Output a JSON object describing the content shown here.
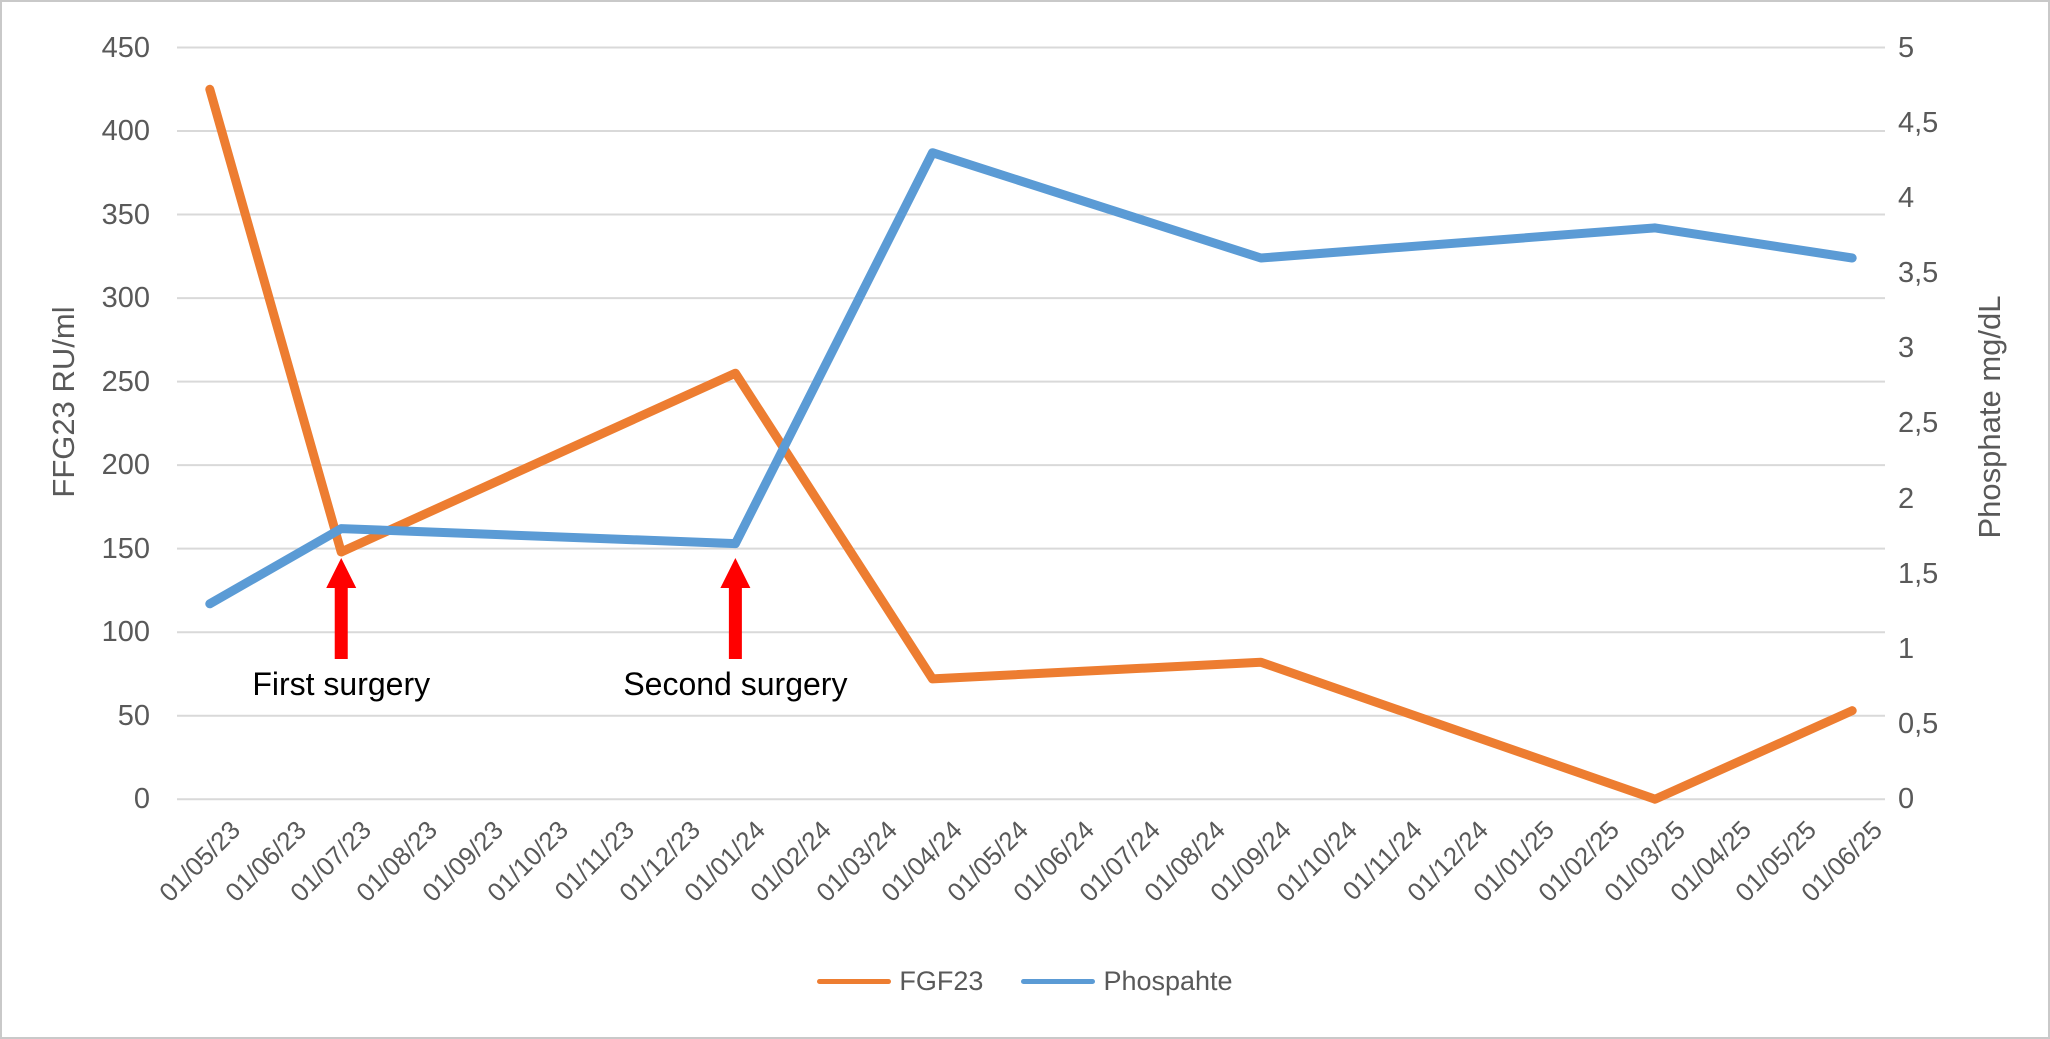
{
  "chart": {
    "left_axis": {
      "title": "FFG23 RU/ml",
      "tick_labels": [
        "450",
        "400",
        "350",
        "300",
        "250",
        "200",
        "150",
        "100",
        "50",
        "0"
      ],
      "tick_values": [
        450,
        400,
        350,
        300,
        250,
        200,
        150,
        100,
        50,
        0
      ]
    },
    "right_axis": {
      "title": "Phosphate mg/dL",
      "tick_labels": [
        "5",
        "4,5",
        "4",
        "3,5",
        "3",
        "2,5",
        "2",
        "1,5",
        "1",
        "0,5",
        "0"
      ],
      "tick_values": [
        5,
        4.5,
        4,
        3.5,
        3,
        2.5,
        2,
        1.5,
        1,
        0.5,
        0
      ]
    }
  },
  "chart_data": {
    "type": "line",
    "title": "",
    "categories": [
      "01/05/23",
      "01/06/23",
      "01/07/23",
      "01/08/23",
      "01/09/23",
      "01/10/23",
      "01/11/23",
      "01/12/23",
      "01/01/24",
      "01/02/24",
      "01/03/24",
      "01/04/24",
      "01/05/24",
      "01/06/24",
      "01/07/24",
      "01/08/24",
      "01/09/24",
      "01/10/24",
      "01/11/24",
      "01/12/24",
      "01/01/25",
      "01/02/25",
      "01/03/25",
      "01/04/25",
      "01/05/25",
      "01/06/25"
    ],
    "left_ylim": [
      0,
      450
    ],
    "right_ylim": [
      0,
      5
    ],
    "grid": true,
    "legend_position": "bottom",
    "series": [
      {
        "name": "FGF23",
        "axis": "left",
        "color": "#ED7D31",
        "points": [
          {
            "category": "01/05/23",
            "value": 425
          },
          {
            "category": "01/07/23",
            "value": 148
          },
          {
            "category": "01/01/24",
            "value": 255
          },
          {
            "category": "01/04/24",
            "value": 72
          },
          {
            "category": "01/09/24",
            "value": 82
          },
          {
            "category": "01/03/25",
            "value": 0
          },
          {
            "category": "01/06/25",
            "value": 53
          }
        ]
      },
      {
        "name": "Phospahte",
        "axis": "right",
        "color": "#5B9BD5",
        "points": [
          {
            "category": "01/05/23",
            "value": 1.3
          },
          {
            "category": "01/07/23",
            "value": 1.8
          },
          {
            "category": "01/01/24",
            "value": 1.7
          },
          {
            "category": "01/04/24",
            "value": 4.3
          },
          {
            "category": "01/09/24",
            "value": 3.6
          },
          {
            "category": "01/03/25",
            "value": 3.8
          },
          {
            "category": "01/06/25",
            "value": 3.6
          }
        ]
      }
    ],
    "annotations": [
      {
        "label": "First surgery",
        "category": "01/07/23",
        "arrow_color": "#FF0000"
      },
      {
        "label": "Second surgery",
        "category": "01/01/24",
        "arrow_color": "#FF0000"
      }
    ]
  },
  "legend": {
    "items": [
      {
        "label": "FGF23",
        "color": "#ED7D31"
      },
      {
        "label": "Phospahte",
        "color": "#5B9BD5"
      }
    ]
  },
  "colors": {
    "gridline": "#D9D9D9",
    "axis_text": "#595959",
    "annotation_text": "#000000",
    "arrow": "#FF0000",
    "background": "#FFFFFF"
  }
}
